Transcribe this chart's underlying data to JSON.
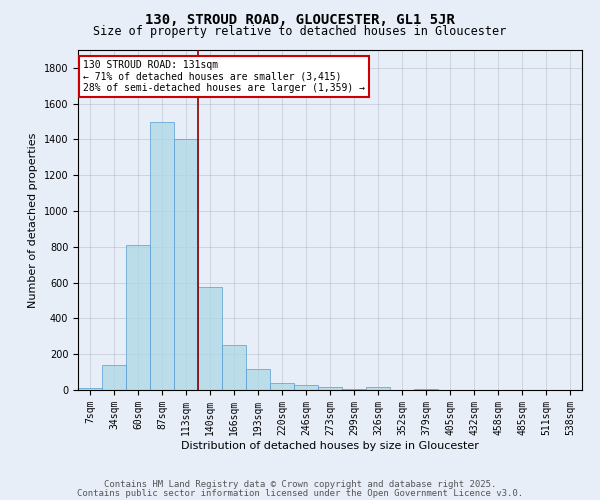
{
  "title1": "130, STROUD ROAD, GLOUCESTER, GL1 5JR",
  "title2": "Size of property relative to detached houses in Gloucester",
  "xlabel": "Distribution of detached houses by size in Gloucester",
  "ylabel": "Number of detached properties",
  "bar_labels": [
    "7sqm",
    "34sqm",
    "60sqm",
    "87sqm",
    "113sqm",
    "140sqm",
    "166sqm",
    "193sqm",
    "220sqm",
    "246sqm",
    "273sqm",
    "299sqm",
    "326sqm",
    "352sqm",
    "379sqm",
    "405sqm",
    "432sqm",
    "458sqm",
    "485sqm",
    "511sqm",
    "538sqm"
  ],
  "bar_values": [
    10,
    140,
    810,
    1500,
    1400,
    575,
    250,
    115,
    40,
    28,
    15,
    5,
    15,
    2,
    5,
    2,
    2,
    2,
    2,
    2,
    2
  ],
  "bar_color": "#add8e6",
  "bar_edge_color": "#5a9fd4",
  "bar_alpha": 0.75,
  "vline_x": 4.5,
  "vline_color": "#8b0000",
  "annotation_text": "130 STROUD ROAD: 131sqm\n← 71% of detached houses are smaller (3,415)\n28% of semi-detached houses are larger (1,359) →",
  "annotation_box_color": "#ffffff",
  "annotation_box_edge_color": "#cc0000",
  "ylim": [
    0,
    1900
  ],
  "yticks": [
    0,
    200,
    400,
    600,
    800,
    1000,
    1200,
    1400,
    1600,
    1800
  ],
  "bg_color": "#e8eef8",
  "plot_bg_color": "#e8eef8",
  "footer_text1": "Contains HM Land Registry data © Crown copyright and database right 2025.",
  "footer_text2": "Contains public sector information licensed under the Open Government Licence v3.0.",
  "title_fontsize": 10,
  "subtitle_fontsize": 8.5,
  "axis_label_fontsize": 8,
  "tick_fontsize": 7,
  "footer_fontsize": 6.5
}
